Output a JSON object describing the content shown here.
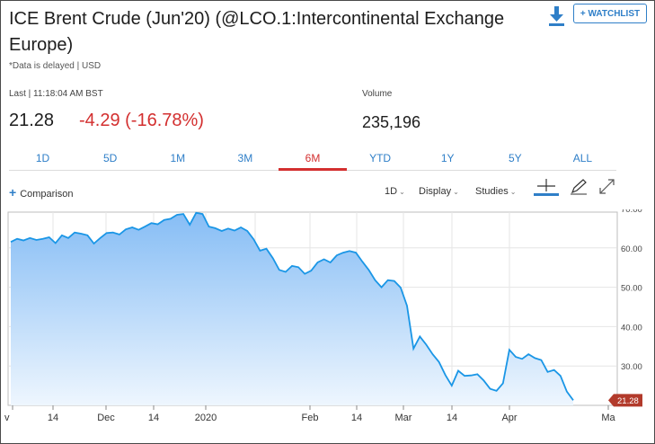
{
  "header": {
    "title": "ICE Brent Crude (Jun'20) (@LCO.1:Intercontinental Exchange Europe)",
    "delayed_note": "*Data is delayed | USD",
    "watchlist_label": "+ WATCHLIST"
  },
  "quote": {
    "last_label": "Last | 11:18:04 AM BST",
    "last_price": "21.28",
    "change": "-4.29 (-16.78%)",
    "volume_label": "Volume",
    "volume_value": "235,196"
  },
  "tabs": [
    "1D",
    "5D",
    "1M",
    "3M",
    "6M",
    "YTD",
    "1Y",
    "5Y",
    "ALL"
  ],
  "active_tab": "6M",
  "toolbar": {
    "comparison_label": "Comparison",
    "interval_label": "1D",
    "display_label": "Display",
    "studies_label": "Studies"
  },
  "colors": {
    "accent_blue": "#2f7fc8",
    "negative_red": "#d32f2f",
    "line_blue": "#1a96e6",
    "price_tag": "#b23a2b"
  },
  "icons": [
    "download-icon",
    "crosshair-icon",
    "pencil-icon",
    "expand-icon"
  ],
  "chart_data": {
    "type": "area",
    "ylim": [
      20,
      70
    ],
    "y_ticks": [
      "70.00",
      "60.00",
      "50.00",
      "40.00",
      "30.00"
    ],
    "x_ticks": [
      "v",
      "14",
      "Dec",
      "14",
      "2020",
      "Feb",
      "14",
      "Mar",
      "14",
      "Apr",
      "Ma"
    ],
    "last_price_tag": "21.28",
    "grid": true,
    "series": [
      {
        "values": [
          61.5,
          62.3,
          61.9,
          62.5,
          62.0,
          62.3,
          62.7,
          61.2,
          63.2,
          62.5,
          63.9,
          63.6,
          63.2,
          61.1,
          62.5,
          63.8,
          63.9,
          63.4,
          64.7,
          65.2,
          64.6,
          65.4,
          66.3,
          66.0,
          67.1,
          67.4,
          68.4,
          68.6,
          65.9,
          68.9,
          68.6,
          65.4,
          65.0,
          64.3,
          64.9,
          64.4,
          65.2,
          64.3,
          62.2,
          59.3,
          59.8,
          57.4,
          54.4,
          53.9,
          55.4,
          55.1,
          53.4,
          54.2,
          56.3,
          57.1,
          56.3,
          58.1,
          58.8,
          59.2,
          58.8,
          56.5,
          54.4,
          51.8,
          50.0,
          51.8,
          51.6,
          49.9,
          45.3,
          34.4,
          37.5,
          35.4,
          33.0,
          31.0,
          27.7,
          25.0,
          28.8,
          27.5,
          27.6,
          27.9,
          26.3,
          24.2,
          23.7,
          25.6,
          34.1,
          32.3,
          31.8,
          33.0,
          32.0,
          31.5,
          28.5,
          29.0,
          27.5,
          23.5,
          21.3
        ],
        "x_range": [
          "Nov 2019",
          "Apr 2020"
        ]
      }
    ]
  }
}
